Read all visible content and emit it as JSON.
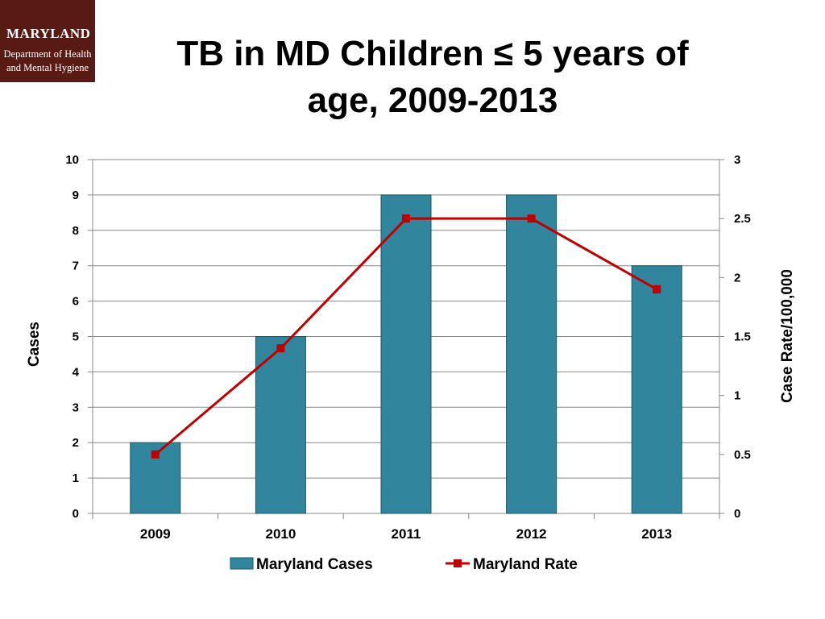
{
  "logo": {
    "title": "MARYLAND",
    "line1": "Department of Health",
    "line2": "and Mental Hygiene"
  },
  "colors": {
    "bar": "#31859c",
    "line": "#c00000",
    "grid": "#888888"
  },
  "chart_data": {
    "type": "bar",
    "title_line1": "TB in MD Children ≤ 5 years of",
    "title_line2": "age, 2009-2013",
    "categories": [
      "2009",
      "2010",
      "2011",
      "2012",
      "2013"
    ],
    "series": [
      {
        "name": "Maryland Cases",
        "type": "bar",
        "axis": "left",
        "values": [
          2,
          5,
          9,
          9,
          7
        ]
      },
      {
        "name": "Maryland Rate",
        "type": "line",
        "axis": "right",
        "values": [
          0.5,
          1.4,
          2.5,
          2.5,
          1.9
        ]
      }
    ],
    "ylabel": "Cases",
    "y2label": "Case Rate/100,000",
    "ylim": [
      0,
      10
    ],
    "y2lim": [
      0,
      3
    ],
    "yticks": [
      "0",
      "1",
      "2",
      "3",
      "4",
      "5",
      "6",
      "7",
      "8",
      "9",
      "10"
    ],
    "y2ticks": [
      "0",
      "0.5",
      "1",
      "1.5",
      "2",
      "2.5",
      "3"
    ],
    "legend_position": "bottom",
    "grid": true
  }
}
